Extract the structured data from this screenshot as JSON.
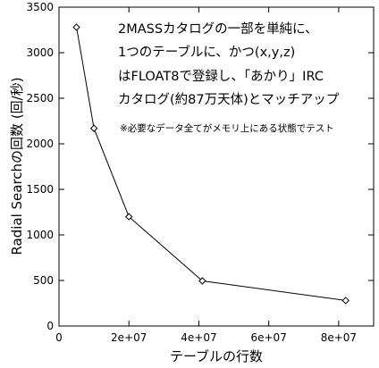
{
  "chart_data": {
    "type": "line",
    "xlabel": "テーブルの行数",
    "ylabel": "Radial Searchの回数 (回/秒)",
    "xlim": [
      0,
      90000000
    ],
    "ylim": [
      0,
      3500
    ],
    "x_ticks": [
      0,
      20000000,
      40000000,
      60000000,
      80000000
    ],
    "x_tick_labels": [
      "0",
      "2e+07",
      "4e+07",
      "6e+07",
      "8e+07"
    ],
    "y_ticks": [
      0,
      500,
      1000,
      1500,
      2000,
      2500,
      3000,
      3500
    ],
    "y_tick_labels": [
      "0",
      "500",
      "1000",
      "1500",
      "2000",
      "2500",
      "3000",
      "3500"
    ],
    "series": [
      {
        "x": [
          5000000,
          10000000,
          20000000,
          41000000,
          82000000
        ],
        "y": [
          3280,
          2170,
          1200,
          495,
          280
        ],
        "marker": "diamond",
        "color": "#000000"
      }
    ],
    "annotation": {
      "lines": [
        "2MASSカタログの一部を単純に、",
        "1つのテーブルに、かつ(x,y,z)",
        "はFLOAT8で登録し、「あかり」IRC",
        "カタログ(約87万天体)とマッチアップ"
      ],
      "small": "※必要なデータ全てがメモリ上にある状態でテスト"
    },
    "grid": false
  }
}
